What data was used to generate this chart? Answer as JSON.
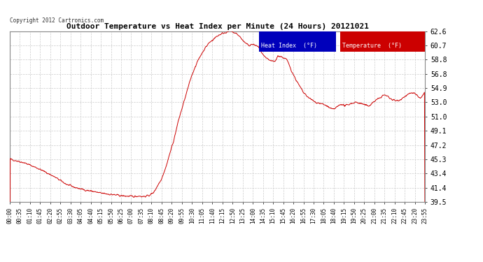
{
  "title": "Outdoor Temperature vs Heat Index per Minute (24 Hours) 20121021",
  "copyright": "Copyright 2012 Cartronics.com",
  "background_color": "#ffffff",
  "plot_bg_color": "#ffffff",
  "grid_color": "#cccccc",
  "line_color": "#cc0000",
  "ylim": [
    39.5,
    62.6
  ],
  "yticks": [
    39.5,
    41.4,
    43.4,
    45.3,
    47.2,
    49.1,
    51.0,
    53.0,
    54.9,
    56.8,
    58.8,
    60.7,
    62.6
  ],
  "xtick_labels": [
    "00:00",
    "00:35",
    "01:10",
    "01:45",
    "02:20",
    "02:55",
    "03:30",
    "04:05",
    "04:40",
    "05:15",
    "05:50",
    "06:25",
    "07:00",
    "07:35",
    "08:10",
    "08:45",
    "09:20",
    "09:55",
    "10:30",
    "11:05",
    "11:40",
    "12:15",
    "12:50",
    "13:25",
    "14:00",
    "14:35",
    "15:10",
    "15:45",
    "16:20",
    "16:55",
    "17:30",
    "18:05",
    "18:40",
    "19:15",
    "19:50",
    "20:25",
    "21:00",
    "21:35",
    "22:10",
    "22:45",
    "23:20",
    "23:55"
  ],
  "legend_heat_index_bg": "#0000bb",
  "legend_temperature_bg": "#cc0000",
  "legend_text_color": "#ffffff",
  "control_points": [
    [
      0,
      45.3
    ],
    [
      50,
      44.8
    ],
    [
      100,
      44.0
    ],
    [
      150,
      43.0
    ],
    [
      200,
      41.8
    ],
    [
      230,
      41.4
    ],
    [
      260,
      41.1
    ],
    [
      290,
      40.9
    ],
    [
      310,
      40.7
    ],
    [
      330,
      40.6
    ],
    [
      350,
      40.5
    ],
    [
      370,
      40.4
    ],
    [
      390,
      40.3
    ],
    [
      410,
      40.25
    ],
    [
      430,
      40.2
    ],
    [
      450,
      40.3
    ],
    [
      460,
      40.2
    ],
    [
      470,
      40.25
    ],
    [
      480,
      40.3
    ],
    [
      490,
      40.5
    ],
    [
      500,
      40.8
    ],
    [
      510,
      41.5
    ],
    [
      525,
      42.5
    ],
    [
      540,
      44.0
    ],
    [
      555,
      46.0
    ],
    [
      570,
      48.0
    ],
    [
      585,
      50.5
    ],
    [
      600,
      52.5
    ],
    [
      615,
      54.5
    ],
    [
      630,
      56.5
    ],
    [
      645,
      58.0
    ],
    [
      660,
      59.2
    ],
    [
      675,
      60.2
    ],
    [
      690,
      61.0
    ],
    [
      705,
      61.5
    ],
    [
      720,
      62.0
    ],
    [
      735,
      62.3
    ],
    [
      750,
      62.5
    ],
    [
      760,
      62.6
    ],
    [
      770,
      62.55
    ],
    [
      780,
      62.4
    ],
    [
      790,
      62.2
    ],
    [
      800,
      61.8
    ],
    [
      810,
      61.3
    ],
    [
      820,
      60.9
    ],
    [
      830,
      60.7
    ],
    [
      840,
      60.85
    ],
    [
      850,
      60.75
    ],
    [
      860,
      60.6
    ],
    [
      870,
      60.0
    ],
    [
      880,
      59.3
    ],
    [
      890,
      58.9
    ],
    [
      900,
      58.7
    ],
    [
      910,
      58.55
    ],
    [
      920,
      58.5
    ],
    [
      930,
      59.3
    ],
    [
      940,
      59.2
    ],
    [
      950,
      59.0
    ],
    [
      960,
      58.8
    ],
    [
      970,
      58.0
    ],
    [
      980,
      57.0
    ],
    [
      1000,
      55.5
    ],
    [
      1020,
      54.2
    ],
    [
      1040,
      53.5
    ],
    [
      1060,
      53.0
    ],
    [
      1080,
      52.8
    ],
    [
      1100,
      52.5
    ],
    [
      1110,
      52.2
    ],
    [
      1120,
      52.0
    ],
    [
      1130,
      52.2
    ],
    [
      1140,
      52.5
    ],
    [
      1150,
      52.8
    ],
    [
      1160,
      52.5
    ],
    [
      1170,
      52.6
    ],
    [
      1180,
      52.8
    ],
    [
      1200,
      53.0
    ],
    [
      1220,
      52.8
    ],
    [
      1240,
      52.5
    ],
    [
      1250,
      52.6
    ],
    [
      1260,
      53.0
    ],
    [
      1270,
      53.3
    ],
    [
      1280,
      53.5
    ],
    [
      1290,
      53.8
    ],
    [
      1300,
      54.0
    ],
    [
      1310,
      53.8
    ],
    [
      1320,
      53.5
    ],
    [
      1330,
      53.3
    ],
    [
      1340,
      53.2
    ],
    [
      1350,
      53.3
    ],
    [
      1360,
      53.5
    ],
    [
      1370,
      53.8
    ],
    [
      1380,
      54.0
    ],
    [
      1390,
      54.2
    ],
    [
      1400,
      54.3
    ],
    [
      1410,
      54.0
    ],
    [
      1420,
      53.5
    ],
    [
      1430,
      53.8
    ],
    [
      1440,
      54.4
    ]
  ]
}
